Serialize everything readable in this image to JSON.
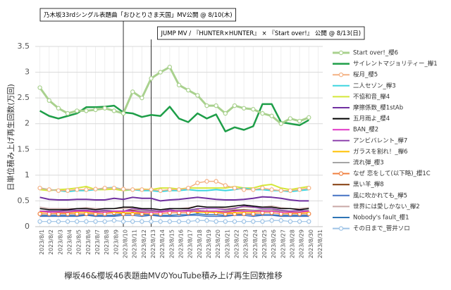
{
  "chart_data": {
    "type": "line",
    "title": "欅坂46&櫻坂46表題曲MVのYouTube積み上げ再生回数推移",
    "y_label": "日単位積み上げ再生回数(万回)",
    "ylim": [
      0,
      3.5
    ],
    "yticks": [
      0,
      0.5,
      1,
      1.5,
      2,
      2.5,
      3,
      3.5
    ],
    "grid": true,
    "legend": "right",
    "annotations": [
      {
        "text": "乃木坂33rdシングル表題曲「おひとりさま天国」MV公開 @ 8/10(木)",
        "x": "2023/8/10"
      },
      {
        "text": "JUMP MV / 『HUNTER×HUNTER』 × 『Start over!』 公開 @ 8/13(日)",
        "x": "2023/8/13"
      }
    ],
    "categories": [
      "2023/8/1",
      "2023/8/2",
      "2023/8/3",
      "2023/8/4",
      "2023/8/5",
      "2023/8/6",
      "2023/8/7",
      "2023/8/8",
      "2023/8/9",
      "2023/8/10",
      "2023/8/11",
      "2023/8/12",
      "2023/8/13",
      "2023/8/14",
      "2023/8/15",
      "2023/8/16",
      "2023/8/17",
      "2023/8/18",
      "2023/8/19",
      "2023/8/20",
      "2023/8/21",
      "2023/8/22",
      "2023/8/23",
      "2023/8/24",
      "2023/8/25",
      "2023/8/26",
      "2023/8/27",
      "2023/8/28",
      "2023/8/29",
      "2023/8/30",
      "2023/8/31"
    ],
    "series": [
      {
        "name": "Start over!_櫻6",
        "color": "#a9d18e",
        "width": 3,
        "marker": "circle",
        "values": [
          2.7,
          2.45,
          2.3,
          2.2,
          2.25,
          2.25,
          2.27,
          2.3,
          2.25,
          2.2,
          2.62,
          2.5,
          2.88,
          3.0,
          3.1,
          2.75,
          2.65,
          2.55,
          2.35,
          2.35,
          2.2,
          2.35,
          2.3,
          2.28,
          2.2,
          2.15,
          2.0,
          2.1,
          2.05,
          2.12,
          null
        ]
      },
      {
        "name": "サイレントマジョリティー_欅1",
        "color": "#1e9e48",
        "width": 2.5,
        "values": [
          2.25,
          2.15,
          2.1,
          2.15,
          2.2,
          2.32,
          2.32,
          2.33,
          2.35,
          2.22,
          2.2,
          2.13,
          2.17,
          2.15,
          2.33,
          2.1,
          2.03,
          2.2,
          2.1,
          2.18,
          1.85,
          1.93,
          1.88,
          1.95,
          2.38,
          2.38,
          2.03,
          2.0,
          1.97,
          2.07,
          null
        ]
      },
      {
        "name": "桜月_櫻5",
        "color": "#f4b183",
        "width": 1.5,
        "marker": "circle",
        "values": [
          0.75,
          0.72,
          0.7,
          0.7,
          0.72,
          0.72,
          0.73,
          0.75,
          0.75,
          0.73,
          0.72,
          0.72,
          0.72,
          0.7,
          0.72,
          0.72,
          0.75,
          0.85,
          0.88,
          0.88,
          0.8,
          0.75,
          0.72,
          0.72,
          0.75,
          0.72,
          0.7,
          0.7,
          0.72,
          0.75,
          null
        ]
      },
      {
        "name": "二人セゾン_欅3",
        "color": "#3fd5e0",
        "width": 2,
        "values": [
          0.75,
          0.72,
          0.7,
          0.68,
          0.7,
          0.7,
          0.72,
          0.75,
          0.76,
          0.72,
          0.72,
          0.7,
          0.7,
          0.68,
          0.7,
          0.7,
          0.72,
          0.7,
          0.7,
          0.72,
          0.7,
          0.72,
          0.75,
          0.72,
          0.72,
          0.7,
          0.7,
          0.68,
          0.7,
          0.72,
          null
        ]
      },
      {
        "name": "不協和音_欅4",
        "color": "#d4e83a",
        "width": 2,
        "values": [
          0.72,
          0.7,
          0.72,
          0.73,
          0.75,
          0.78,
          0.72,
          0.72,
          0.73,
          0.7,
          0.72,
          0.73,
          0.72,
          0.75,
          0.75,
          0.73,
          0.75,
          0.75,
          0.75,
          0.75,
          0.75,
          0.78,
          0.75,
          0.75,
          0.8,
          0.82,
          0.75,
          0.72,
          0.75,
          0.78,
          null
        ]
      },
      {
        "name": "摩擦係数_櫻1stAb",
        "color": "#7030a0",
        "width": 2,
        "values": [
          0.57,
          0.53,
          0.52,
          0.52,
          0.53,
          0.53,
          0.52,
          0.52,
          0.55,
          0.53,
          0.57,
          0.55,
          0.55,
          0.5,
          0.52,
          0.53,
          0.55,
          0.57,
          0.55,
          0.53,
          0.52,
          0.52,
          0.53,
          0.55,
          0.58,
          0.57,
          0.55,
          0.52,
          0.5,
          0.5,
          null
        ]
      },
      {
        "name": "五月雨よ_櫻4",
        "color": "#000000",
        "width": 1.5,
        "values": [
          0.35,
          0.33,
          0.33,
          0.33,
          0.35,
          0.35,
          0.33,
          0.35,
          0.35,
          0.38,
          0.38,
          0.35,
          0.35,
          0.33,
          0.35,
          0.35,
          0.35,
          0.4,
          0.38,
          0.38,
          0.38,
          0.4,
          0.42,
          0.4,
          0.38,
          0.38,
          0.35,
          0.35,
          0.33,
          0.35,
          null
        ]
      },
      {
        "name": "BAN_櫻2",
        "color": "#e036c6",
        "width": 1.5,
        "values": [
          0.3,
          0.28,
          0.28,
          0.28,
          0.3,
          0.3,
          0.28,
          0.28,
          0.3,
          0.3,
          0.3,
          0.28,
          0.28,
          0.28,
          0.3,
          0.3,
          0.3,
          0.3,
          0.3,
          0.3,
          0.28,
          0.3,
          0.3,
          0.3,
          0.3,
          0.3,
          0.28,
          0.28,
          0.28,
          0.3,
          null
        ]
      },
      {
        "name": "アンビバレント_欅7",
        "color": "#8e44ad",
        "width": 1.5,
        "values": [
          0.3,
          0.3,
          0.3,
          0.32,
          0.32,
          0.32,
          0.3,
          0.32,
          0.3,
          0.3,
          0.35,
          0.33,
          0.32,
          0.3,
          0.33,
          0.3,
          0.32,
          0.35,
          0.35,
          0.35,
          0.33,
          0.35,
          0.4,
          0.38,
          0.35,
          0.35,
          0.32,
          0.3,
          0.32,
          0.3,
          null
        ]
      },
      {
        "name": "ガラスを割れ！_欅6",
        "color": "#ffc000",
        "width": 1.5,
        "values": [
          0.28,
          0.28,
          0.27,
          0.27,
          0.28,
          0.28,
          0.27,
          0.28,
          0.28,
          0.27,
          0.27,
          0.27,
          0.28,
          0.28,
          0.3,
          0.3,
          0.3,
          0.28,
          0.28,
          0.28,
          0.27,
          0.27,
          0.28,
          0.28,
          0.3,
          0.3,
          0.28,
          0.27,
          0.27,
          0.28,
          null
        ]
      },
      {
        "name": "流れ弾_櫻3",
        "color": "#a5a5a5",
        "width": 1.5,
        "values": [
          0.3,
          0.3,
          0.3,
          0.3,
          0.32,
          0.32,
          0.3,
          0.3,
          0.3,
          0.3,
          0.3,
          0.3,
          0.3,
          0.3,
          0.3,
          0.32,
          0.32,
          0.32,
          0.3,
          0.3,
          0.3,
          0.3,
          0.32,
          0.32,
          0.33,
          0.33,
          0.3,
          0.3,
          0.3,
          0.32,
          null
        ]
      },
      {
        "name": "なぜ 恋をして(以下略)_櫻1C",
        "color": "#f08040",
        "width": 1.2,
        "marker": "circle",
        "values": [
          0.25,
          0.25,
          0.25,
          0.25,
          0.25,
          0.25,
          0.25,
          0.25,
          0.27,
          0.25,
          0.25,
          0.25,
          0.25,
          0.25,
          0.27,
          0.27,
          0.27,
          0.3,
          0.28,
          0.27,
          0.25,
          0.25,
          0.25,
          0.25,
          0.27,
          0.27,
          0.25,
          0.25,
          0.25,
          0.25,
          null
        ]
      },
      {
        "name": "黒い羊_欅8",
        "color": "#843c0c",
        "width": 1.5,
        "values": [
          0.3,
          0.28,
          0.28,
          0.28,
          0.3,
          0.3,
          0.28,
          0.3,
          0.3,
          0.3,
          0.32,
          0.3,
          0.3,
          0.3,
          0.3,
          0.3,
          0.32,
          0.32,
          0.3,
          0.3,
          0.3,
          0.32,
          0.33,
          0.32,
          0.3,
          0.3,
          0.3,
          0.3,
          0.3,
          0.3,
          null
        ]
      },
      {
        "name": "風に吹かれても_欅5",
        "color": "#4472c4",
        "width": 1.5,
        "values": [
          0.2,
          0.2,
          0.2,
          0.2,
          0.2,
          0.22,
          0.2,
          0.2,
          0.2,
          0.22,
          0.22,
          0.2,
          0.22,
          0.2,
          0.2,
          0.2,
          0.22,
          0.22,
          0.2,
          0.2,
          0.2,
          0.22,
          0.22,
          0.2,
          0.22,
          0.22,
          0.2,
          0.2,
          0.2,
          0.2,
          null
        ]
      },
      {
        "name": "世界には愛しかない_欅2",
        "color": "#c9a9a6",
        "width": 1.5,
        "values": [
          0.38,
          0.35,
          0.35,
          0.35,
          0.35,
          0.37,
          0.35,
          0.35,
          0.35,
          0.35,
          0.37,
          0.35,
          0.35,
          0.33,
          0.35,
          0.35,
          0.37,
          0.4,
          0.38,
          0.38,
          0.35,
          0.37,
          0.38,
          0.37,
          0.38,
          0.4,
          0.37,
          0.35,
          0.35,
          0.37,
          null
        ]
      },
      {
        "name": "Nobody's fault_櫻1",
        "color": "#2e75b6",
        "width": 1.5,
        "values": [
          0.22,
          0.22,
          0.22,
          0.22,
          0.22,
          0.23,
          0.22,
          0.22,
          0.22,
          0.25,
          0.25,
          0.23,
          0.23,
          0.22,
          0.22,
          0.23,
          0.23,
          0.25,
          0.23,
          0.23,
          0.22,
          0.22,
          0.25,
          0.23,
          0.23,
          0.23,
          0.22,
          0.22,
          0.22,
          0.22,
          null
        ]
      },
      {
        "name": "その日まで_菅井ソロ",
        "color": "#9dc3e6",
        "width": 1.2,
        "marker": "circle",
        "values": [
          0.1,
          0.1,
          0.1,
          0.1,
          0.1,
          0.1,
          0.1,
          0.1,
          0.12,
          0.1,
          0.1,
          0.1,
          0.1,
          0.1,
          0.1,
          0.1,
          0.1,
          0.12,
          0.12,
          0.1,
          0.1,
          0.1,
          0.1,
          0.1,
          0.1,
          0.12,
          0.12,
          0.1,
          0.1,
          0.1,
          null
        ]
      }
    ]
  }
}
